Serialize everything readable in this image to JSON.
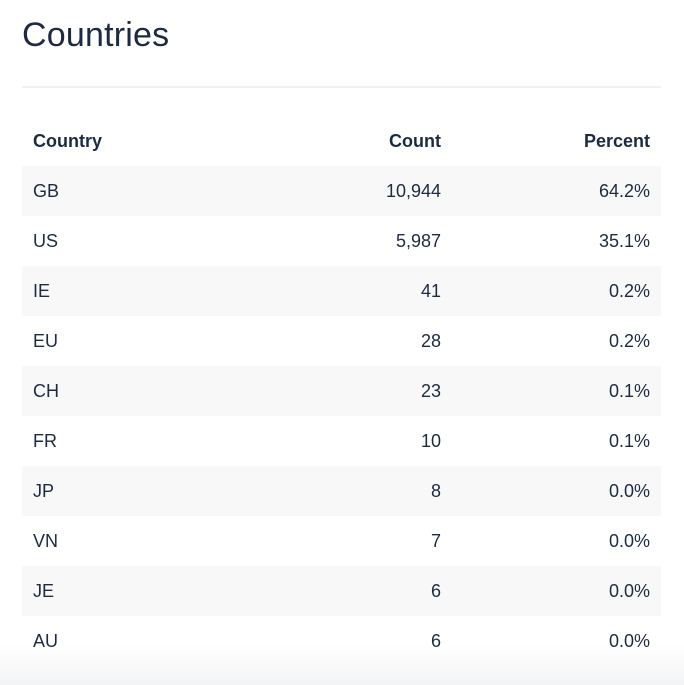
{
  "title": "Countries",
  "table": {
    "headers": [
      "Country",
      "Count",
      "Percent"
    ],
    "rows": [
      [
        "GB",
        "10,944",
        "64.2%"
      ],
      [
        "US",
        "5,987",
        "35.1%"
      ],
      [
        "IE",
        "41",
        "0.2%"
      ],
      [
        "EU",
        "28",
        "0.2%"
      ],
      [
        "CH",
        "23",
        "0.1%"
      ],
      [
        "FR",
        "10",
        "0.1%"
      ],
      [
        "JP",
        "8",
        "0.0%"
      ],
      [
        "VN",
        "7",
        "0.0%"
      ],
      [
        "JE",
        "6",
        "0.0%"
      ],
      [
        "AU",
        "6",
        "0.0%"
      ]
    ]
  }
}
